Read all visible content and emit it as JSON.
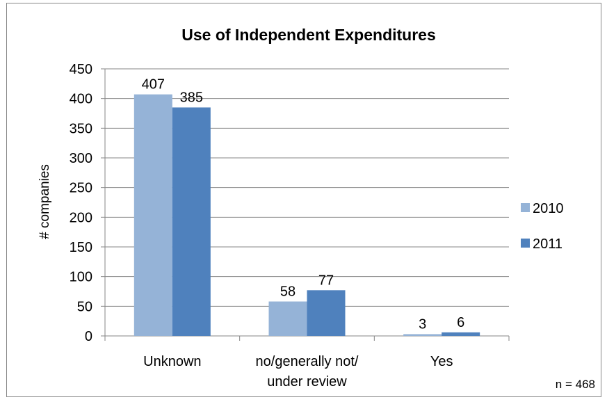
{
  "chart_data": {
    "type": "bar",
    "title": "Use of Independent Expenditures",
    "ylabel": "# companies",
    "xlabel": "",
    "categories": [
      [
        "Unknown"
      ],
      [
        "no/generally not/",
        "under review"
      ],
      [
        "Yes"
      ]
    ],
    "series": [
      {
        "name": "2010",
        "values": [
          407,
          58,
          3
        ],
        "color": "#95b3d7"
      },
      {
        "name": "2011",
        "values": [
          385,
          77,
          6
        ],
        "color": "#4f81bd"
      }
    ],
    "ylim": [
      0,
      450
    ],
    "yticks": [
      0,
      50,
      100,
      150,
      200,
      250,
      300,
      350,
      400,
      450
    ],
    "grid": true,
    "legend_position": "right",
    "note": "n = 468"
  }
}
